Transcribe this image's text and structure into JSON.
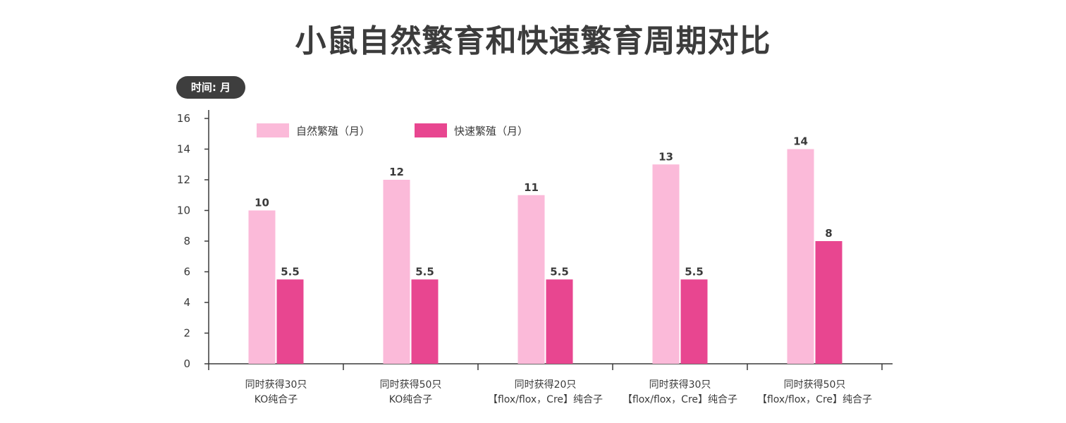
{
  "title": "小鼠自然繁育和快速繁育周期对比",
  "unit_badge": "时间: 月",
  "colors": {
    "natural": "#fbbad9",
    "fast": "#e84690",
    "axis": "#3a3a3a",
    "badge": "#3e3e3e"
  },
  "chart_data": {
    "type": "bar",
    "categories": [
      [
        "同时获得30只",
        "KO纯合子"
      ],
      [
        "同时获得50只",
        "KO纯合子"
      ],
      [
        "同时获得20只",
        "【flox/flox，Cre】纯合子"
      ],
      [
        "同时获得30只",
        "【flox/flox，Cre】纯合子"
      ],
      [
        "同时获得50只",
        "【flox/flox，Cre】纯合子"
      ]
    ],
    "series": [
      {
        "name": "自然繁殖（月）",
        "values": [
          10,
          12,
          11,
          13,
          14
        ],
        "labels": [
          "10",
          "12",
          "11",
          "13",
          "14"
        ]
      },
      {
        "name": "快速繁殖（月）",
        "values": [
          5.5,
          5.5,
          5.5,
          5.5,
          8
        ],
        "labels": [
          "5.5",
          "5.5",
          "5.5",
          "5.5",
          "8"
        ]
      }
    ],
    "ylim": [
      0,
      16
    ],
    "yticks": [
      "0",
      "2",
      "4",
      "6",
      "8",
      "10",
      "12",
      "14",
      "16"
    ],
    "legend_position": "top-left",
    "grid": false
  }
}
